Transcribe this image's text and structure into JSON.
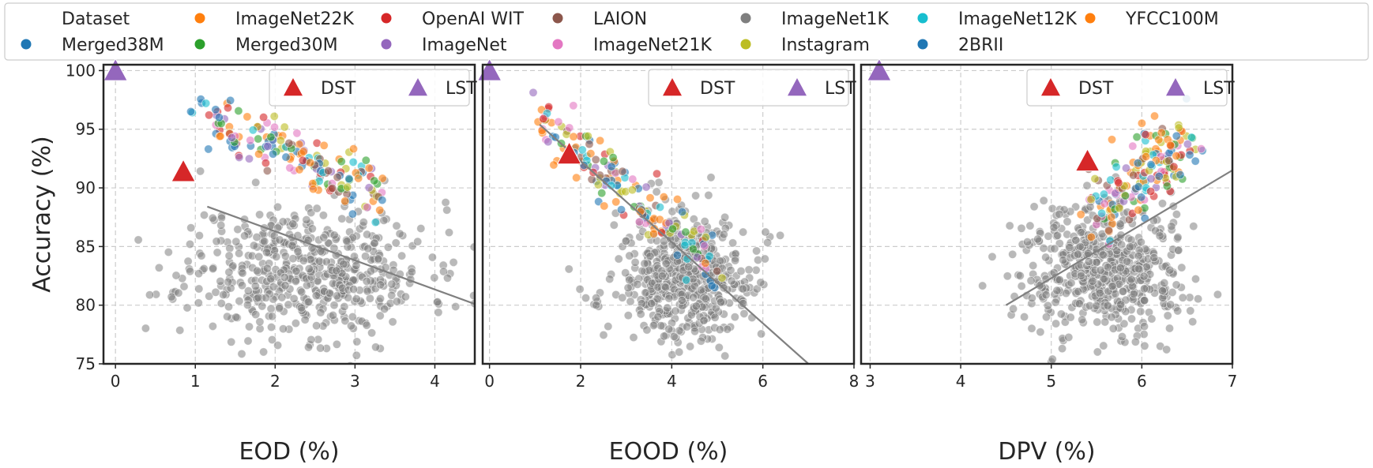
{
  "legend": {
    "title": "Dataset",
    "entries": [
      {
        "name": "Merged38M",
        "color": "#1f77b4"
      },
      {
        "name": "ImageNet22K",
        "color": "#ff7f0e"
      },
      {
        "name": "Merged30M",
        "color": "#2ca02c"
      },
      {
        "name": "OpenAI WIT",
        "color": "#d62728"
      },
      {
        "name": "ImageNet",
        "color": "#9467bd"
      },
      {
        "name": "LAION",
        "color": "#8c564b"
      },
      {
        "name": "ImageNet21K",
        "color": "#e377c2"
      },
      {
        "name": "ImageNet1K",
        "color": "#7f7f7f"
      },
      {
        "name": "Instagram",
        "color": "#bcbd22"
      },
      {
        "name": "ImageNet12K",
        "color": "#17becf"
      },
      {
        "name": "2BRII",
        "color": "#1f77b4"
      },
      {
        "name": "YFCC100M",
        "color": "#ff7f0e"
      }
    ]
  },
  "chart_data": [
    {
      "type": "scatter",
      "xlabel": "EOD (%)",
      "ylabel": "Accuracy (%)",
      "xlim": [
        -0.15,
        4.5
      ],
      "ylim": [
        75,
        100.5
      ],
      "xticks": [
        0,
        1,
        2,
        3,
        4
      ],
      "yticks": [
        75,
        80,
        85,
        90,
        95,
        100
      ],
      "grid": true,
      "legend_position": "top-right",
      "markers": [
        {
          "name": "DST",
          "x": 0.85,
          "y": 91.4,
          "color": "#d62728",
          "shape": "triangle"
        },
        {
          "name": "LST",
          "x": 0.0,
          "y": 100.0,
          "color": "#9467bd",
          "shape": "triangle"
        }
      ],
      "trendline": {
        "x": [
          1.15,
          4.5
        ],
        "y": [
          88.4,
          80.1
        ]
      },
      "clusters": {
        "gray": {
          "color": "#7f7f7f",
          "count": 560,
          "x_center": 2.4,
          "x_spread": 0.75,
          "y_center": 83.0,
          "y_spread": 2.9,
          "seed": 11
        },
        "colored": {
          "count": 170,
          "x_start": 1.2,
          "x_end": 3.3,
          "y_start": 95.8,
          "y_end": 89.5,
          "noise": 1.1,
          "seed": 12
        }
      }
    },
    {
      "type": "scatter",
      "xlabel": "EOOD (%)",
      "ylabel": "",
      "xlim": [
        -0.15,
        8
      ],
      "ylim": [
        75,
        100.5
      ],
      "xticks": [
        0,
        2,
        4,
        6,
        8
      ],
      "yticks": [
        75,
        80,
        85,
        90,
        95,
        100
      ],
      "grid": true,
      "legend_position": "top-right",
      "markers": [
        {
          "name": "DST",
          "x": 1.75,
          "y": 92.9,
          "color": "#d62728",
          "shape": "triangle"
        },
        {
          "name": "LST",
          "x": 0.0,
          "y": 100.0,
          "color": "#9467bd",
          "shape": "triangle"
        }
      ],
      "trendline": {
        "x": [
          1.1,
          7.0
        ],
        "y": [
          95.4,
          75.0
        ]
      },
      "clusters": {
        "gray": {
          "color": "#7f7f7f",
          "count": 560,
          "x_center": 4.3,
          "x_spread": 0.75,
          "y_center": 82.3,
          "y_spread": 2.6,
          "seed": 21
        },
        "colored": {
          "count": 170,
          "x_start": 1.1,
          "x_end": 5.0,
          "y_start": 95.8,
          "y_end": 83.0,
          "noise": 1.2,
          "seed": 22
        }
      }
    },
    {
      "type": "scatter",
      "xlabel": "DPV (%)",
      "ylabel": "",
      "xlim": [
        2.9,
        7.0
      ],
      "ylim": [
        75,
        100.5
      ],
      "xticks": [
        3,
        4,
        5,
        6,
        7
      ],
      "yticks": [
        75,
        80,
        85,
        90,
        95,
        100
      ],
      "grid": true,
      "legend_position": "top-right",
      "markers": [
        {
          "name": "DST",
          "x": 5.4,
          "y": 92.3,
          "color": "#d62728",
          "shape": "triangle"
        },
        {
          "name": "LST",
          "x": 3.1,
          "y": 100.0,
          "color": "#9467bd",
          "shape": "triangle"
        }
      ],
      "trendline": {
        "x": [
          4.5,
          7.0
        ],
        "y": [
          80.0,
          91.5
        ]
      },
      "clusters": {
        "gray": {
          "color": "#7f7f7f",
          "count": 560,
          "x_center": 5.6,
          "x_spread": 0.45,
          "y_center": 83.0,
          "y_spread": 2.7,
          "seed": 31
        },
        "colored": {
          "count": 170,
          "x_start": 5.5,
          "x_end": 6.5,
          "y_start": 88.0,
          "y_end": 94.5,
          "noise": 1.5,
          "seed": 32
        }
      }
    }
  ]
}
